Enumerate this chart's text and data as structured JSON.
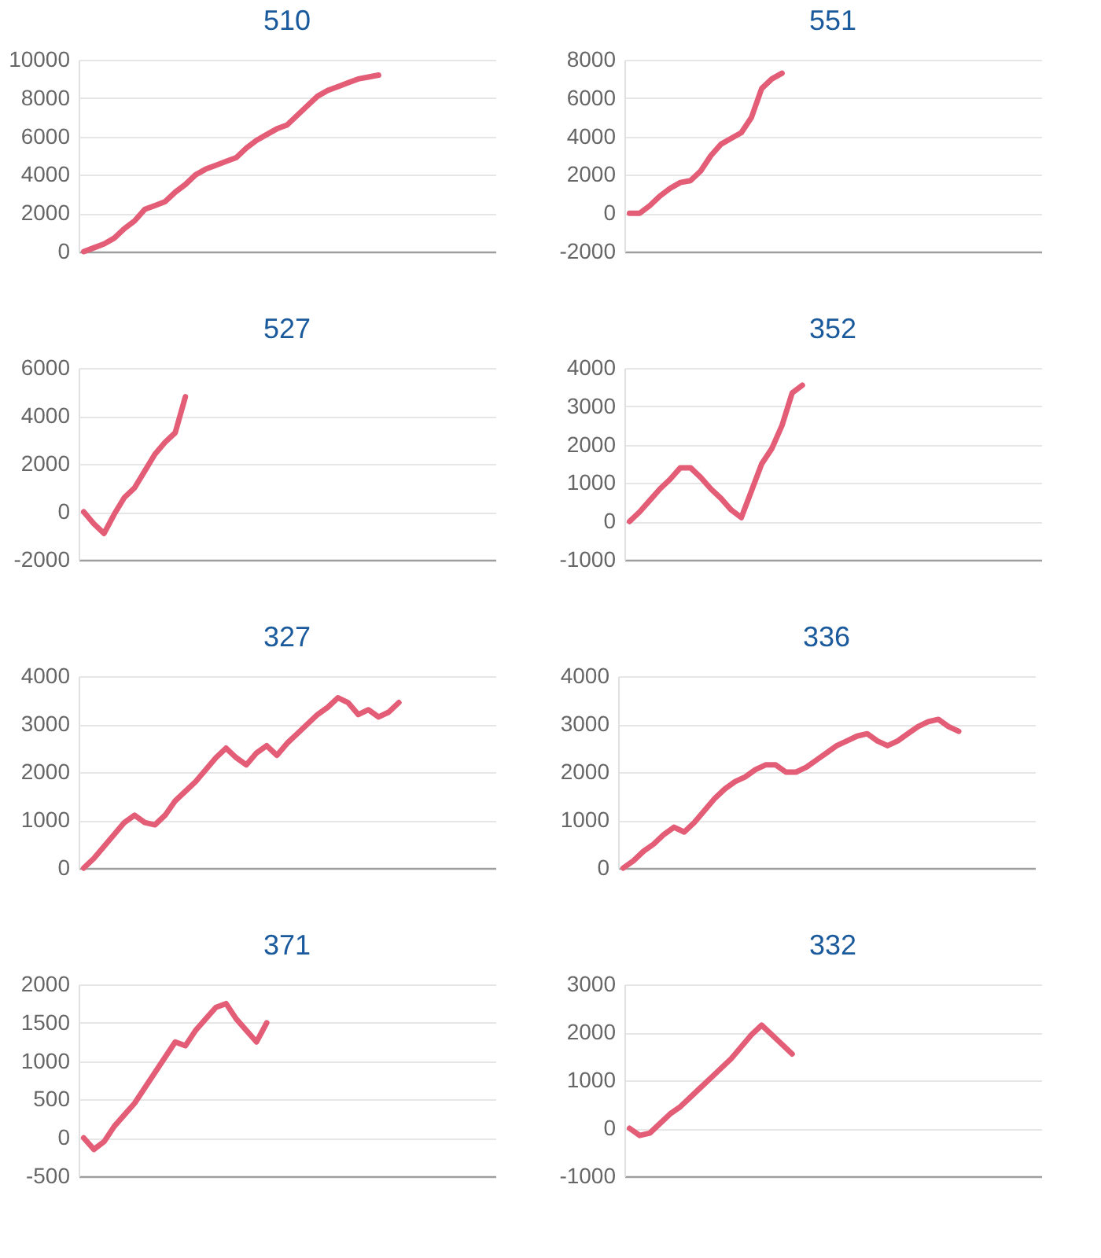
{
  "chart_data": [
    {
      "type": "line",
      "title": "510",
      "categories": [
        null,
        null,
        null,
        null,
        null,
        null,
        null,
        null,
        null,
        null,
        null,
        null,
        null,
        null,
        null,
        null,
        null,
        null,
        null,
        null,
        null,
        null,
        null,
        null,
        null,
        null,
        null,
        null,
        null,
        null,
        null,
        null,
        null,
        null,
        null,
        null,
        null,
        null,
        null,
        null,
        null
      ],
      "series": [
        {
          "color": "#e35d77",
          "values": [
            0,
            200,
            400,
            700,
            1200,
            1600,
            2200,
            2400,
            2600,
            3100,
            3500,
            4000,
            4300,
            4500,
            4700,
            4900,
            5400,
            5800,
            6100,
            6400,
            6600,
            7100,
            7600,
            8100,
            8400,
            8600,
            8800,
            9000,
            9100,
            9200,
            null,
            null,
            null,
            null,
            null,
            null,
            null,
            null,
            null,
            null,
            null
          ]
        }
      ],
      "ylim": [
        0,
        10000
      ],
      "yticks": [
        0,
        2000,
        4000,
        6000,
        8000,
        10000
      ],
      "grid": "y",
      "tick_labels": "y",
      "line_style": "solid",
      "marker": "none"
    },
    {
      "type": "line",
      "title": "551",
      "categories": [
        null,
        null,
        null,
        null,
        null,
        null,
        null,
        null,
        null,
        null,
        null,
        null,
        null,
        null,
        null,
        null,
        null,
        null,
        null,
        null,
        null,
        null,
        null,
        null,
        null,
        null,
        null,
        null,
        null,
        null,
        null,
        null,
        null,
        null,
        null,
        null,
        null,
        null,
        null,
        null,
        null
      ],
      "series": [
        {
          "color": "#e35d77",
          "values": [
            0,
            0,
            400,
            900,
            1300,
            1600,
            1700,
            2200,
            3000,
            3600,
            3900,
            4200,
            5000,
            6500,
            7000,
            7300,
            null,
            null,
            null,
            null,
            null,
            null,
            null,
            null,
            null,
            null,
            null,
            null,
            null,
            null,
            null,
            null,
            null,
            null,
            null,
            null,
            null,
            null,
            null,
            null,
            null
          ]
        }
      ],
      "ylim": [
        -2000,
        8000
      ],
      "yticks": [
        -2000,
        0,
        2000,
        4000,
        6000,
        8000
      ],
      "grid": "y",
      "tick_labels": "y",
      "line_style": "solid",
      "marker": "none"
    },
    {
      "type": "line",
      "title": "527",
      "categories": [
        null,
        null,
        null,
        null,
        null,
        null,
        null,
        null,
        null,
        null,
        null,
        null,
        null,
        null,
        null,
        null,
        null,
        null,
        null,
        null,
        null,
        null,
        null,
        null,
        null,
        null,
        null,
        null,
        null,
        null,
        null,
        null,
        null,
        null,
        null,
        null,
        null,
        null,
        null,
        null,
        null
      ],
      "series": [
        {
          "color": "#e35d77",
          "values": [
            0,
            -500,
            -900,
            -100,
            600,
            1000,
            1700,
            2400,
            2900,
            3300,
            4800,
            null,
            null,
            null,
            null,
            null,
            null,
            null,
            null,
            null,
            null,
            null,
            null,
            null,
            null,
            null,
            null,
            null,
            null,
            null,
            null,
            null,
            null,
            null,
            null,
            null,
            null,
            null,
            null,
            null,
            null
          ]
        }
      ],
      "ylim": [
        -2000,
        6000
      ],
      "yticks": [
        -2000,
        0,
        2000,
        4000,
        6000
      ],
      "grid": "y",
      "tick_labels": "y",
      "line_style": "solid",
      "marker": "none"
    },
    {
      "type": "line",
      "title": "352",
      "categories": [
        null,
        null,
        null,
        null,
        null,
        null,
        null,
        null,
        null,
        null,
        null,
        null,
        null,
        null,
        null,
        null,
        null,
        null,
        null,
        null,
        null,
        null,
        null,
        null,
        null,
        null,
        null,
        null,
        null,
        null,
        null,
        null,
        null,
        null,
        null,
        null,
        null,
        null,
        null,
        null,
        null
      ],
      "series": [
        {
          "color": "#e35d77",
          "values": [
            0,
            250,
            550,
            850,
            1100,
            1400,
            1400,
            1150,
            850,
            600,
            300,
            100,
            800,
            1500,
            1900,
            2500,
            3350,
            3550,
            null,
            null,
            null,
            null,
            null,
            null,
            null,
            null,
            null,
            null,
            null,
            null,
            null,
            null,
            null,
            null,
            null,
            null,
            null,
            null,
            null,
            null,
            null
          ]
        }
      ],
      "ylim": [
        -1000,
        4000
      ],
      "yticks": [
        -1000,
        0,
        1000,
        2000,
        3000,
        4000
      ],
      "grid": "y",
      "tick_labels": "y",
      "line_style": "solid",
      "marker": "none"
    },
    {
      "type": "line",
      "title": "327",
      "categories": [
        null,
        null,
        null,
        null,
        null,
        null,
        null,
        null,
        null,
        null,
        null,
        null,
        null,
        null,
        null,
        null,
        null,
        null,
        null,
        null,
        null,
        null,
        null,
        null,
        null,
        null,
        null,
        null,
        null,
        null,
        null,
        null,
        null,
        null,
        null,
        null,
        null,
        null,
        null,
        null,
        null
      ],
      "series": [
        {
          "color": "#e35d77",
          "values": [
            0,
            200,
            450,
            700,
            950,
            1100,
            950,
            900,
            1100,
            1400,
            1600,
            1800,
            2050,
            2300,
            2500,
            2300,
            2150,
            2400,
            2550,
            2350,
            2600,
            2800,
            3000,
            3200,
            3350,
            3550,
            3450,
            3200,
            3300,
            3150,
            3250,
            3450,
            null,
            null,
            null,
            null,
            null,
            null,
            null,
            null,
            null
          ]
        }
      ],
      "ylim": [
        0,
        4000
      ],
      "yticks": [
        0,
        1000,
        2000,
        3000,
        4000
      ],
      "grid": "y",
      "tick_labels": "y",
      "line_style": "solid",
      "marker": "none"
    },
    {
      "type": "line",
      "title": "336",
      "categories": [
        null,
        null,
        null,
        null,
        null,
        null,
        null,
        null,
        null,
        null,
        null,
        null,
        null,
        null,
        null,
        null,
        null,
        null,
        null,
        null,
        null,
        null,
        null,
        null,
        null,
        null,
        null,
        null,
        null,
        null,
        null,
        null,
        null,
        null,
        null,
        null,
        null,
        null,
        null,
        null,
        null
      ],
      "series": [
        {
          "color": "#e35d77",
          "values": [
            0,
            150,
            350,
            500,
            700,
            850,
            750,
            950,
            1200,
            1450,
            1650,
            1800,
            1900,
            2050,
            2150,
            2150,
            2000,
            2000,
            2100,
            2250,
            2400,
            2550,
            2650,
            2750,
            2800,
            2650,
            2550,
            2650,
            2800,
            2950,
            3050,
            3100,
            2950,
            2850,
            null,
            null,
            null,
            null,
            null,
            null,
            null
          ]
        }
      ],
      "ylim": [
        0,
        4000
      ],
      "yticks": [
        0,
        1000,
        2000,
        3000,
        4000
      ],
      "grid": "y",
      "tick_labels": "y",
      "line_style": "solid",
      "marker": "none"
    },
    {
      "type": "line",
      "title": "371",
      "categories": [
        null,
        null,
        null,
        null,
        null,
        null,
        null,
        null,
        null,
        null,
        null,
        null,
        null,
        null,
        null,
        null,
        null,
        null,
        null,
        null,
        null,
        null,
        null,
        null,
        null,
        null,
        null,
        null,
        null,
        null,
        null,
        null,
        null,
        null,
        null,
        null,
        null,
        null,
        null,
        null,
        null
      ],
      "series": [
        {
          "color": "#e35d77",
          "values": [
            0,
            -150,
            -50,
            150,
            300,
            450,
            650,
            850,
            1050,
            1250,
            1200,
            1400,
            1550,
            1700,
            1750,
            1550,
            1400,
            1250,
            1500,
            null,
            null,
            null,
            null,
            null,
            null,
            null,
            null,
            null,
            null,
            null,
            null,
            null,
            null,
            null,
            null,
            null,
            null,
            null,
            null,
            null,
            null
          ]
        }
      ],
      "ylim": [
        -500,
        2000
      ],
      "yticks": [
        -500,
        0,
        500,
        1000,
        1500,
        2000
      ],
      "grid": "y",
      "tick_labels": "y",
      "line_style": "solid",
      "marker": "none"
    },
    {
      "type": "line",
      "title": "332",
      "categories": [
        null,
        null,
        null,
        null,
        null,
        null,
        null,
        null,
        null,
        null,
        null,
        null,
        null,
        null,
        null,
        null,
        null,
        null,
        null,
        null,
        null,
        null,
        null,
        null,
        null,
        null,
        null,
        null,
        null,
        null,
        null,
        null,
        null,
        null,
        null,
        null,
        null,
        null,
        null,
        null,
        null
      ],
      "series": [
        {
          "color": "#e35d77",
          "values": [
            0,
            -150,
            -100,
            100,
            300,
            450,
            650,
            850,
            1050,
            1250,
            1450,
            1700,
            1950,
            2150,
            1950,
            1750,
            1550,
            null,
            null,
            null,
            null,
            null,
            null,
            null,
            null,
            null,
            null,
            null,
            null,
            null,
            null,
            null,
            null,
            null,
            null,
            null,
            null,
            null,
            null,
            null,
            null
          ]
        }
      ],
      "ylim": [
        -1000,
        3000
      ],
      "yticks": [
        -1000,
        0,
        1000,
        2000,
        3000
      ],
      "grid": "y",
      "tick_labels": "y",
      "line_style": "solid",
      "marker": "none"
    }
  ]
}
